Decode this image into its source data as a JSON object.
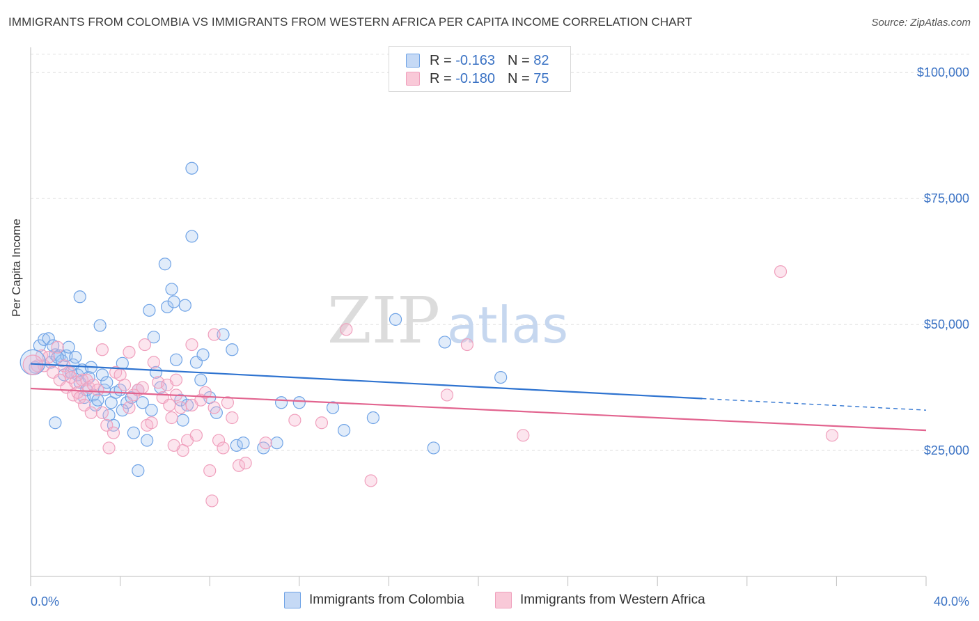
{
  "title": "IMMIGRANTS FROM COLOMBIA VS IMMIGRANTS FROM WESTERN AFRICA PER CAPITA INCOME CORRELATION CHART",
  "source": "Source: ZipAtlas.com",
  "watermark": {
    "zip": "ZIP",
    "atlas": "atlas"
  },
  "legend": {
    "rows": [
      {
        "r_label": "R =",
        "r_value": "-0.163",
        "n_label": "N =",
        "n_value": "82"
      },
      {
        "r_label": "R =",
        "r_value": "-0.180",
        "n_label": "N =",
        "n_value": "75"
      }
    ]
  },
  "chart_data": {
    "type": "scatter",
    "title": "IMMIGRANTS FROM COLOMBIA VS IMMIGRANTS FROM WESTERN AFRICA PER CAPITA INCOME CORRELATION CHART",
    "xlabel": "",
    "ylabel": "Per Capita Income",
    "xlim": [
      0,
      40
    ],
    "ylim": [
      0,
      105000
    ],
    "x_tick_labels": [
      "0.0%",
      "40.0%"
    ],
    "y_tick_labels": [
      "$25,000",
      "$50,000",
      "$75,000",
      "$100,000"
    ],
    "y_tick_values": [
      25000,
      50000,
      75000,
      100000
    ],
    "series": [
      {
        "name": "Immigrants from Colombia",
        "color": "#6fa3e6",
        "line_color": "#2e73d0",
        "trend": {
          "x0": 0,
          "y0": 42200,
          "x1": 30,
          "y1": 35300,
          "dash_to_x": 40,
          "dash_to_y": 33000
        },
        "points": [
          [
            0.2,
            41500
          ],
          [
            0.4,
            45800
          ],
          [
            0.6,
            47000
          ],
          [
            0.8,
            47200
          ],
          [
            0.9,
            42500
          ],
          [
            1.0,
            45800
          ],
          [
            1.1,
            44000
          ],
          [
            1.3,
            43800
          ],
          [
            1.4,
            42800
          ],
          [
            1.5,
            40000
          ],
          [
            1.6,
            43800
          ],
          [
            1.7,
            45500
          ],
          [
            1.8,
            40500
          ],
          [
            1.9,
            42000
          ],
          [
            2.0,
            43500
          ],
          [
            2.1,
            40000
          ],
          [
            2.2,
            38500
          ],
          [
            2.3,
            41000
          ],
          [
            2.4,
            35500
          ],
          [
            2.5,
            37000
          ],
          [
            2.6,
            39500
          ],
          [
            2.7,
            41500
          ],
          [
            2.8,
            36000
          ],
          [
            2.9,
            34000
          ],
          [
            3.0,
            35000
          ],
          [
            3.1,
            49800
          ],
          [
            3.2,
            40000
          ],
          [
            3.3,
            37000
          ],
          [
            3.4,
            38500
          ],
          [
            3.5,
            32000
          ],
          [
            3.6,
            34500
          ],
          [
            3.7,
            30000
          ],
          [
            3.8,
            36500
          ],
          [
            4.0,
            37000
          ],
          [
            4.1,
            42300
          ],
          [
            4.3,
            34500
          ],
          [
            4.5,
            35500
          ],
          [
            4.6,
            28500
          ],
          [
            4.8,
            37000
          ],
          [
            5.0,
            34500
          ],
          [
            5.2,
            27000
          ],
          [
            5.4,
            33000
          ],
          [
            5.6,
            40500
          ],
          [
            5.8,
            37500
          ],
          [
            6.0,
            62000
          ],
          [
            6.1,
            53500
          ],
          [
            6.3,
            57000
          ],
          [
            6.4,
            54500
          ],
          [
            6.5,
            43000
          ],
          [
            6.7,
            35000
          ],
          [
            6.8,
            31000
          ],
          [
            7.0,
            34000
          ],
          [
            7.2,
            67500
          ],
          [
            7.4,
            42500
          ],
          [
            7.6,
            39000
          ],
          [
            7.7,
            44000
          ],
          [
            8.0,
            35500
          ],
          [
            8.3,
            32500
          ],
          [
            8.6,
            48000
          ],
          [
            9.0,
            45000
          ],
          [
            9.2,
            26000
          ],
          [
            9.5,
            26500
          ],
          [
            10.4,
            25500
          ],
          [
            11.0,
            26500
          ],
          [
            11.2,
            34500
          ],
          [
            12.0,
            34500
          ],
          [
            13.5,
            33500
          ],
          [
            14.0,
            29000
          ],
          [
            15.3,
            31500
          ],
          [
            16.3,
            51000
          ],
          [
            18.0,
            25500
          ],
          [
            18.5,
            46500
          ],
          [
            21.0,
            39500
          ],
          [
            1.2,
            43500
          ],
          [
            2.2,
            55500
          ],
          [
            1.1,
            30500
          ],
          [
            4.1,
            33000
          ],
          [
            5.5,
            47500
          ],
          [
            6.9,
            53800
          ],
          [
            4.8,
            21000
          ],
          [
            7.2,
            81000
          ],
          [
            5.3,
            52800
          ]
        ]
      },
      {
        "name": "Immigrants from Western Africa",
        "color": "#f0a0bd",
        "line_color": "#e2648f",
        "trend": {
          "x0": 0,
          "y0": 37300,
          "x1": 40,
          "y1": 29000
        },
        "points": [
          [
            0.3,
            41800
          ],
          [
            0.5,
            43800
          ],
          [
            0.6,
            41800
          ],
          [
            0.8,
            43500
          ],
          [
            1.0,
            40500
          ],
          [
            1.2,
            45500
          ],
          [
            1.3,
            39000
          ],
          [
            1.5,
            41800
          ],
          [
            1.6,
            37500
          ],
          [
            1.7,
            40500
          ],
          [
            1.8,
            39500
          ],
          [
            1.9,
            36000
          ],
          [
            2.0,
            38500
          ],
          [
            2.1,
            36500
          ],
          [
            2.2,
            35500
          ],
          [
            2.3,
            39000
          ],
          [
            2.4,
            34000
          ],
          [
            2.5,
            39000
          ],
          [
            2.6,
            37500
          ],
          [
            2.7,
            32500
          ],
          [
            2.8,
            38000
          ],
          [
            3.0,
            37000
          ],
          [
            3.2,
            32500
          ],
          [
            3.4,
            30000
          ],
          [
            3.5,
            25500
          ],
          [
            3.7,
            28500
          ],
          [
            3.8,
            40500
          ],
          [
            4.0,
            40000
          ],
          [
            4.2,
            38000
          ],
          [
            4.4,
            33500
          ],
          [
            4.6,
            36000
          ],
          [
            4.8,
            37000
          ],
          [
            5.0,
            37500
          ],
          [
            5.2,
            30000
          ],
          [
            5.4,
            30500
          ],
          [
            5.5,
            42500
          ],
          [
            5.7,
            38500
          ],
          [
            5.9,
            35500
          ],
          [
            6.1,
            38000
          ],
          [
            6.3,
            31500
          ],
          [
            6.5,
            36000
          ],
          [
            6.7,
            33500
          ],
          [
            6.8,
            25000
          ],
          [
            7.0,
            27000
          ],
          [
            7.2,
            34000
          ],
          [
            7.4,
            28000
          ],
          [
            7.6,
            35000
          ],
          [
            7.8,
            36500
          ],
          [
            8.0,
            21000
          ],
          [
            8.2,
            33500
          ],
          [
            8.4,
            27000
          ],
          [
            8.6,
            25500
          ],
          [
            8.8,
            34500
          ],
          [
            9.0,
            31500
          ],
          [
            9.3,
            22000
          ],
          [
            9.6,
            22500
          ],
          [
            10.5,
            26500
          ],
          [
            11.8,
            31000
          ],
          [
            13.0,
            30500
          ],
          [
            14.1,
            49000
          ],
          [
            15.2,
            19000
          ],
          [
            18.6,
            36000
          ],
          [
            22.0,
            28000
          ],
          [
            33.5,
            60500
          ],
          [
            35.8,
            28000
          ],
          [
            3.2,
            45000
          ],
          [
            5.1,
            46000
          ],
          [
            6.4,
            26000
          ],
          [
            7.2,
            46000
          ],
          [
            6.2,
            34000
          ],
          [
            8.2,
            48000
          ],
          [
            8.1,
            15000
          ],
          [
            6.5,
            39000
          ],
          [
            4.4,
            44500
          ],
          [
            19.5,
            46000
          ]
        ]
      }
    ]
  }
}
